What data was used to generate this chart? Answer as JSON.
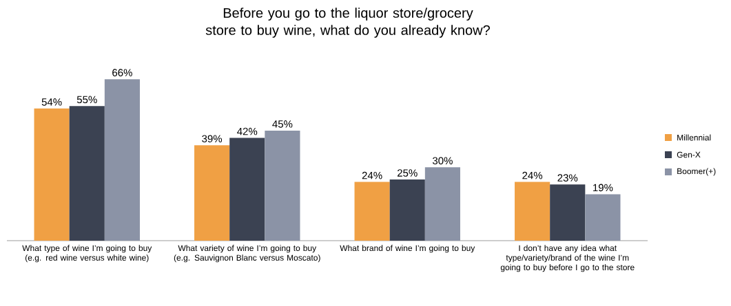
{
  "chart_data": {
    "type": "bar",
    "title": "Before you go to the liquor store/grocery store to buy wine, what do you already know?",
    "categories": [
      "What type of wine I’m going to buy (e.g. red wine versus white wine)",
      "What variety of wine I’m going to buy (e.g. Sauvignon Blanc versus Moscato)",
      "What brand of wine I’m going to buy",
      "I don’t have any idea what type/variety/brand of the wine I’m going to buy before I go to the store"
    ],
    "series": [
      {
        "name": "Millennial",
        "color": "#f0a044",
        "values": [
          54,
          39,
          24,
          24
        ],
        "value_labels": [
          "54%",
          "39%",
          "24%",
          "24%"
        ]
      },
      {
        "name": "Gen-X",
        "color": "#3b4252",
        "values": [
          55,
          42,
          25,
          23
        ],
        "value_labels": [
          "55%",
          "42%",
          "25%",
          "23%"
        ]
      },
      {
        "name": "Boomer(+)",
        "color": "#8b93a6",
        "values": [
          66,
          45,
          30,
          19
        ],
        "value_labels": [
          "66%",
          "45%",
          "30%",
          "19%"
        ]
      }
    ],
    "legend": "right"
  }
}
